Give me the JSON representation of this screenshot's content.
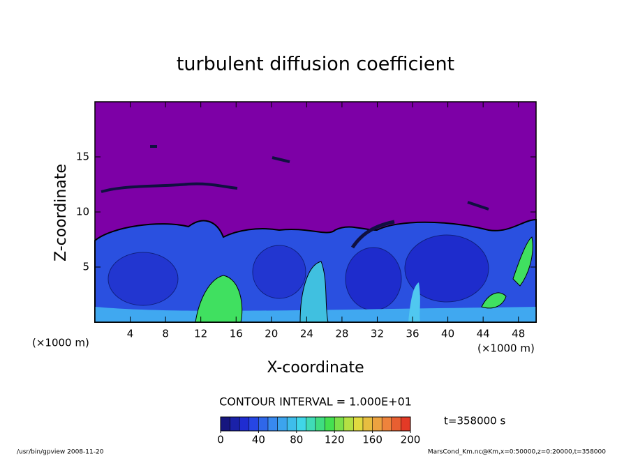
{
  "chart_data": {
    "type": "contour",
    "title": "turbulent diffusion coefficient",
    "xlabel": "X-coordinate",
    "ylabel": "Z-coordinate",
    "x_unit": "(×1000 m)",
    "y_unit": "(×1000 m)",
    "xlim": [
      0,
      50
    ],
    "ylim": [
      0,
      20
    ],
    "xticks": [
      4,
      8,
      12,
      16,
      20,
      24,
      28,
      32,
      36,
      40,
      44,
      48
    ],
    "yticks": [
      5,
      10,
      15
    ],
    "background_color": "#7d00a6",
    "contour_interval_label": "CONTOUR INTERVAL = 1.000E+01",
    "time_label": "t=358000 s",
    "colorbar": {
      "lim": [
        0,
        200
      ],
      "ticks": [
        0,
        40,
        80,
        120,
        160,
        200
      ],
      "interval": 10,
      "colors": [
        "#14106a",
        "#2030e0",
        "#3a90f0",
        "#40d8e8",
        "#40e050",
        "#e0e040",
        "#f09040",
        "#e02820"
      ]
    },
    "footer_left": "/usr/bin/gpview   2008-11-20",
    "footer_right": "MarsCond_Km.nc@Km,x=0:50000,z=0:20000,t=358000"
  }
}
